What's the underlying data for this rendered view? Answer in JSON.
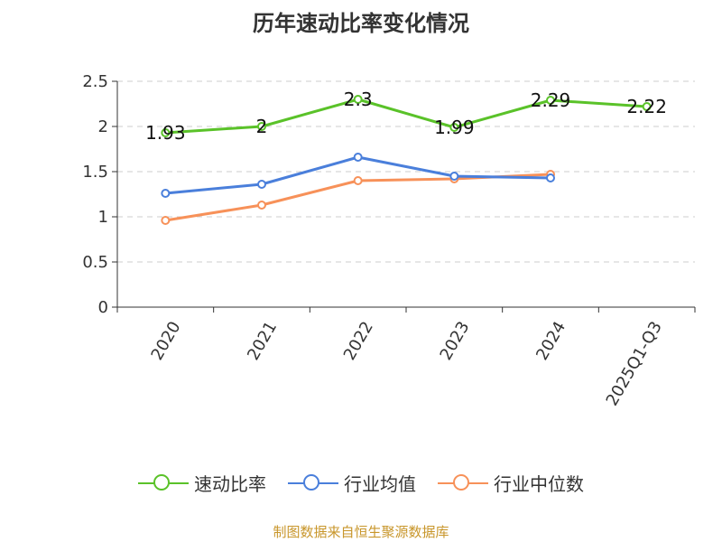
{
  "chart_data": {
    "type": "line",
    "title": "历年速动比率变化情况",
    "categories": [
      "2020",
      "2021",
      "2022",
      "2023",
      "2024",
      "2025Q1-Q3"
    ],
    "ylim": [
      0,
      2.5
    ],
    "yticks": [
      "0",
      "0.5",
      "1",
      "1.5",
      "2",
      "2.5"
    ],
    "grid": true,
    "legend_position": "bottom",
    "series": [
      {
        "name": "速动比率",
        "color": "#5ac229",
        "values": [
          1.93,
          2.0,
          2.3,
          1.99,
          2.29,
          2.22
        ],
        "labels": [
          "1.93",
          "2",
          "2.3",
          "1.99",
          "2.29",
          "2.22"
        ]
      },
      {
        "name": "行业均值",
        "color": "#4a7fdb",
        "values": [
          1.26,
          1.36,
          1.66,
          1.45,
          1.43,
          null
        ]
      },
      {
        "name": "行业中位数",
        "color": "#f79159",
        "values": [
          0.96,
          1.13,
          1.4,
          1.42,
          1.47,
          null
        ]
      }
    ]
  },
  "footer": {
    "source": "制图数据来自恒生聚源数据库"
  }
}
